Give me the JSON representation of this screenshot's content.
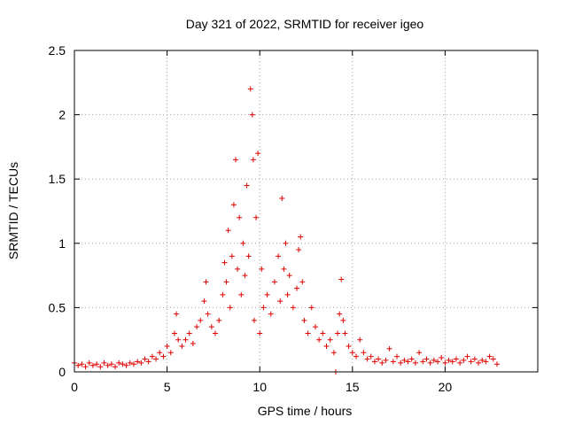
{
  "chart_data": {
    "type": "scatter",
    "title": "Day 321 of 2022, SRMTID for receiver igeo",
    "xlabel": "GPS time / hours",
    "ylabel": "SRMTID / TECUs",
    "xlim": [
      0,
      25
    ],
    "ylim": [
      0,
      2.5
    ],
    "x_ticks": [
      0,
      5,
      10,
      15,
      20
    ],
    "y_ticks": [
      0,
      0.5,
      1,
      1.5,
      2,
      2.5
    ],
    "x_tick_labels": [
      "0",
      "5",
      "10",
      "15",
      "20"
    ],
    "y_tick_labels": [
      "0",
      "0.5",
      "1",
      "1.5",
      "2",
      "2.5"
    ],
    "grid": true,
    "marker": "+",
    "color": "#e00000",
    "series": [
      {
        "name": "SRMTID",
        "points": [
          [
            0.0,
            0.07
          ],
          [
            0.2,
            0.05
          ],
          [
            0.4,
            0.06
          ],
          [
            0.6,
            0.04
          ],
          [
            0.8,
            0.07
          ],
          [
            1.0,
            0.05
          ],
          [
            1.2,
            0.06
          ],
          [
            1.4,
            0.04
          ],
          [
            1.6,
            0.07
          ],
          [
            1.8,
            0.05
          ],
          [
            2.0,
            0.06
          ],
          [
            2.2,
            0.04
          ],
          [
            2.4,
            0.07
          ],
          [
            2.6,
            0.06
          ],
          [
            2.8,
            0.05
          ],
          [
            3.0,
            0.07
          ],
          [
            3.2,
            0.06
          ],
          [
            3.4,
            0.08
          ],
          [
            3.6,
            0.07
          ],
          [
            3.8,
            0.1
          ],
          [
            4.0,
            0.08
          ],
          [
            4.2,
            0.12
          ],
          [
            4.4,
            0.1
          ],
          [
            4.6,
            0.15
          ],
          [
            4.8,
            0.12
          ],
          [
            5.0,
            0.2
          ],
          [
            5.2,
            0.15
          ],
          [
            5.4,
            0.3
          ],
          [
            5.5,
            0.45
          ],
          [
            5.6,
            0.25
          ],
          [
            5.8,
            0.2
          ],
          [
            6.0,
            0.25
          ],
          [
            6.2,
            0.3
          ],
          [
            6.4,
            0.22
          ],
          [
            6.6,
            0.35
          ],
          [
            6.8,
            0.4
          ],
          [
            7.0,
            0.55
          ],
          [
            7.1,
            0.7
          ],
          [
            7.2,
            0.45
          ],
          [
            7.4,
            0.35
          ],
          [
            7.6,
            0.3
          ],
          [
            7.8,
            0.4
          ],
          [
            8.0,
            0.6
          ],
          [
            8.1,
            0.85
          ],
          [
            8.2,
            0.7
          ],
          [
            8.3,
            1.1
          ],
          [
            8.4,
            0.5
          ],
          [
            8.5,
            0.9
          ],
          [
            8.6,
            1.3
          ],
          [
            8.7,
            1.65
          ],
          [
            8.8,
            0.8
          ],
          [
            8.9,
            1.2
          ],
          [
            9.0,
            0.6
          ],
          [
            9.1,
            1.0
          ],
          [
            9.2,
            0.75
          ],
          [
            9.3,
            1.45
          ],
          [
            9.4,
            0.9
          ],
          [
            9.5,
            2.2
          ],
          [
            9.6,
            2.0
          ],
          [
            9.65,
            1.65
          ],
          [
            9.7,
            0.4
          ],
          [
            9.8,
            1.2
          ],
          [
            9.9,
            1.7
          ],
          [
            10.0,
            0.3
          ],
          [
            10.1,
            0.8
          ],
          [
            10.2,
            0.5
          ],
          [
            10.4,
            0.6
          ],
          [
            10.6,
            0.45
          ],
          [
            10.8,
            0.7
          ],
          [
            11.0,
            0.9
          ],
          [
            11.1,
            0.55
          ],
          [
            11.2,
            1.35
          ],
          [
            11.3,
            0.8
          ],
          [
            11.4,
            1.0
          ],
          [
            11.5,
            0.6
          ],
          [
            11.6,
            0.75
          ],
          [
            11.8,
            0.5
          ],
          [
            12.0,
            0.65
          ],
          [
            12.1,
            0.95
          ],
          [
            12.2,
            1.05
          ],
          [
            12.3,
            0.7
          ],
          [
            12.4,
            0.4
          ],
          [
            12.6,
            0.3
          ],
          [
            12.8,
            0.5
          ],
          [
            13.0,
            0.35
          ],
          [
            13.2,
            0.25
          ],
          [
            13.4,
            0.3
          ],
          [
            13.6,
            0.2
          ],
          [
            13.8,
            0.25
          ],
          [
            14.0,
            0.15
          ],
          [
            14.1,
            0.0
          ],
          [
            14.2,
            0.3
          ],
          [
            14.3,
            0.45
          ],
          [
            14.4,
            0.72
          ],
          [
            14.5,
            0.4
          ],
          [
            14.6,
            0.3
          ],
          [
            14.8,
            0.2
          ],
          [
            15.0,
            0.15
          ],
          [
            15.2,
            0.12
          ],
          [
            15.4,
            0.25
          ],
          [
            15.6,
            0.15
          ],
          [
            15.8,
            0.1
          ],
          [
            16.0,
            0.12
          ],
          [
            16.2,
            0.08
          ],
          [
            16.4,
            0.1
          ],
          [
            16.6,
            0.07
          ],
          [
            16.8,
            0.09
          ],
          [
            17.0,
            0.18
          ],
          [
            17.2,
            0.08
          ],
          [
            17.4,
            0.12
          ],
          [
            17.6,
            0.07
          ],
          [
            17.8,
            0.09
          ],
          [
            18.0,
            0.08
          ],
          [
            18.2,
            0.1
          ],
          [
            18.4,
            0.07
          ],
          [
            18.6,
            0.15
          ],
          [
            18.8,
            0.08
          ],
          [
            19.0,
            0.1
          ],
          [
            19.2,
            0.07
          ],
          [
            19.4,
            0.09
          ],
          [
            19.6,
            0.08
          ],
          [
            19.8,
            0.11
          ],
          [
            20.0,
            0.07
          ],
          [
            20.2,
            0.09
          ],
          [
            20.4,
            0.08
          ],
          [
            20.6,
            0.1
          ],
          [
            20.8,
            0.07
          ],
          [
            21.0,
            0.09
          ],
          [
            21.2,
            0.12
          ],
          [
            21.4,
            0.08
          ],
          [
            21.6,
            0.1
          ],
          [
            21.8,
            0.07
          ],
          [
            22.0,
            0.09
          ],
          [
            22.2,
            0.08
          ],
          [
            22.4,
            0.12
          ],
          [
            22.6,
            0.1
          ],
          [
            22.8,
            0.06
          ]
        ]
      }
    ]
  }
}
